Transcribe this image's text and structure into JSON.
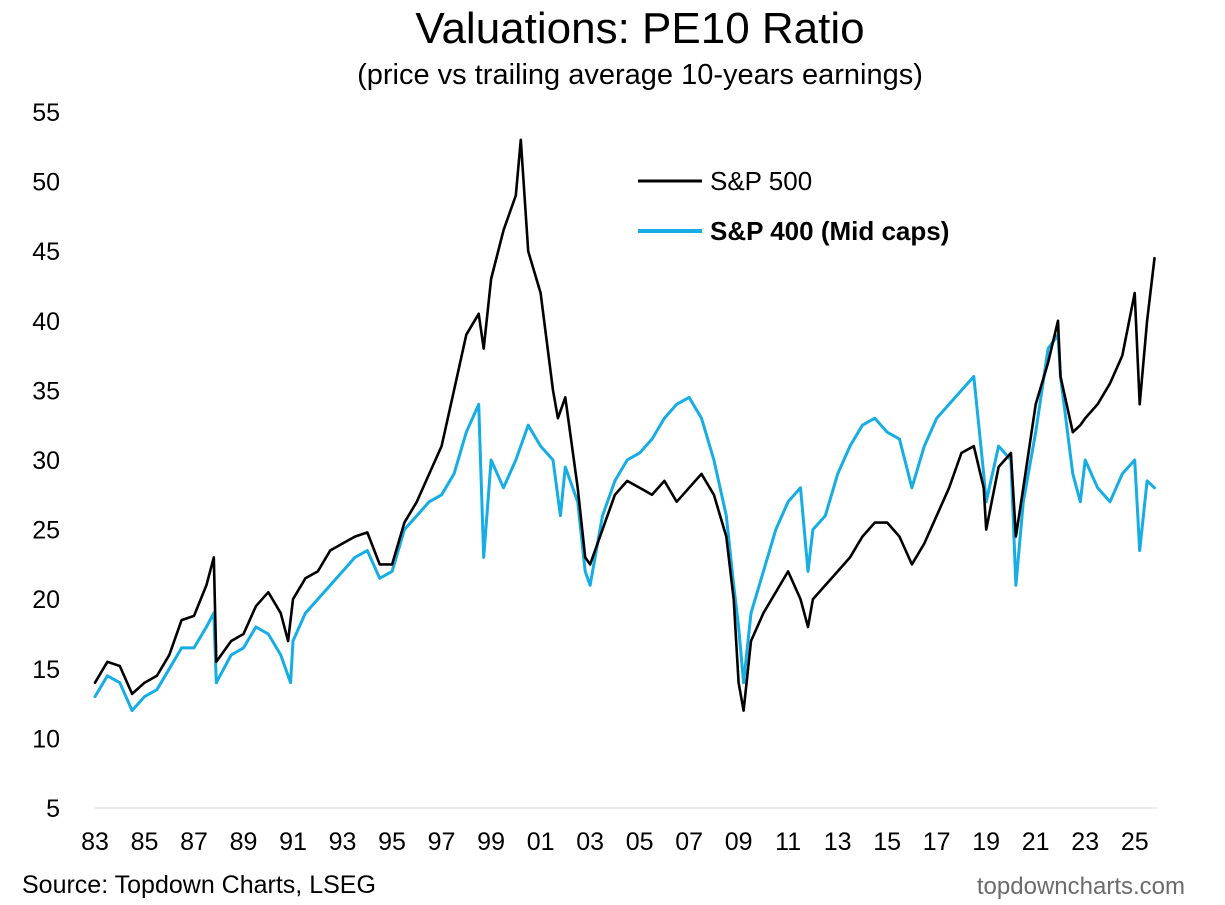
{
  "chart_data": {
    "type": "line",
    "title": "Valuations: PE10 Ratio",
    "subtitle": "(price vs trailing average 10-years earnings)",
    "xlabel": "",
    "ylabel": "",
    "ylim": [
      5,
      55
    ],
    "yticks": [
      5,
      10,
      15,
      20,
      25,
      30,
      35,
      40,
      45,
      50,
      55
    ],
    "xlim": [
      1983,
      2025.9
    ],
    "xticks": [
      {
        "value": 1983,
        "label": "83"
      },
      {
        "value": 1985,
        "label": "85"
      },
      {
        "value": 1987,
        "label": "87"
      },
      {
        "value": 1989,
        "label": "89"
      },
      {
        "value": 1991,
        "label": "91"
      },
      {
        "value": 1993,
        "label": "93"
      },
      {
        "value": 1995,
        "label": "95"
      },
      {
        "value": 1997,
        "label": "97"
      },
      {
        "value": 1999,
        "label": "99"
      },
      {
        "value": 2001,
        "label": "01"
      },
      {
        "value": 2003,
        "label": "03"
      },
      {
        "value": 2005,
        "label": "05"
      },
      {
        "value": 2007,
        "label": "07"
      },
      {
        "value": 2009,
        "label": "09"
      },
      {
        "value": 2011,
        "label": "11"
      },
      {
        "value": 2013,
        "label": "13"
      },
      {
        "value": 2015,
        "label": "15"
      },
      {
        "value": 2017,
        "label": "17"
      },
      {
        "value": 2019,
        "label": "19"
      },
      {
        "value": 2021,
        "label": "21"
      },
      {
        "value": 2023,
        "label": "23"
      },
      {
        "value": 2025,
        "label": "25"
      }
    ],
    "grid": false,
    "legend_position": "top-right",
    "series": [
      {
        "name": "S&P 500",
        "color": "#000000",
        "bold": false,
        "x": [
          1983.0,
          1983.5,
          1984.0,
          1984.5,
          1985.0,
          1985.5,
          1986.0,
          1986.5,
          1987.0,
          1987.5,
          1987.8,
          1987.9,
          1988.5,
          1989.0,
          1989.5,
          1990.0,
          1990.5,
          1990.8,
          1991.0,
          1991.5,
          1992.0,
          1992.5,
          1993.0,
          1993.5,
          1994.0,
          1994.5,
          1995.0,
          1995.5,
          1996.0,
          1996.5,
          1997.0,
          1997.5,
          1998.0,
          1998.5,
          1998.7,
          1999.0,
          1999.5,
          2000.0,
          2000.2,
          2000.5,
          2001.0,
          2001.5,
          2001.7,
          2002.0,
          2002.5,
          2002.8,
          2003.0,
          2003.5,
          2004.0,
          2004.5,
          2005.0,
          2005.5,
          2006.0,
          2006.5,
          2007.0,
          2007.5,
          2008.0,
          2008.5,
          2008.8,
          2009.0,
          2009.2,
          2009.5,
          2010.0,
          2010.5,
          2011.0,
          2011.5,
          2011.8,
          2012.0,
          2012.5,
          2013.0,
          2013.5,
          2014.0,
          2014.5,
          2015.0,
          2015.5,
          2016.0,
          2016.5,
          2017.0,
          2017.5,
          2018.0,
          2018.5,
          2018.9,
          2019.0,
          2019.5,
          2020.0,
          2020.2,
          2020.5,
          2021.0,
          2021.5,
          2021.9,
          2022.0,
          2022.5,
          2022.8,
          2023.0,
          2023.5,
          2024.0,
          2024.5,
          2025.0,
          2025.2,
          2025.5,
          2025.8
        ],
        "values": [
          14.0,
          15.5,
          15.2,
          13.2,
          14.0,
          14.5,
          16.0,
          18.5,
          18.8,
          21.0,
          23.0,
          15.5,
          17.0,
          17.5,
          19.5,
          20.5,
          19.0,
          17.0,
          20.0,
          21.5,
          22.0,
          23.5,
          24.0,
          24.5,
          24.8,
          22.5,
          22.5,
          25.5,
          27.0,
          29.0,
          31.0,
          35.0,
          39.0,
          40.5,
          38.0,
          43.0,
          46.5,
          49.0,
          53.0,
          45.0,
          42.0,
          35.0,
          33.0,
          34.5,
          28.0,
          23.0,
          22.5,
          25.0,
          27.5,
          28.5,
          28.0,
          27.5,
          28.5,
          27.0,
          28.0,
          29.0,
          27.5,
          24.5,
          20.0,
          14.0,
          12.0,
          17.0,
          19.0,
          20.5,
          22.0,
          20.0,
          18.0,
          20.0,
          21.0,
          22.0,
          23.0,
          24.5,
          25.5,
          25.5,
          24.5,
          22.5,
          24.0,
          26.0,
          28.0,
          30.5,
          31.0,
          28.0,
          25.0,
          29.5,
          30.5,
          24.5,
          28.0,
          34.0,
          37.0,
          40.0,
          36.0,
          32.0,
          32.5,
          33.0,
          34.0,
          35.5,
          37.5,
          42.0,
          34.0,
          40.0,
          44.5
        ]
      },
      {
        "name": "S&P 400 (Mid caps)",
        "color": "#16ade5",
        "bold": true,
        "x": [
          1983.0,
          1983.5,
          1984.0,
          1984.5,
          1985.0,
          1985.5,
          1986.0,
          1986.5,
          1987.0,
          1987.5,
          1987.8,
          1987.9,
          1988.5,
          1989.0,
          1989.5,
          1990.0,
          1990.5,
          1990.9,
          1991.0,
          1991.5,
          1992.0,
          1992.5,
          1993.0,
          1993.5,
          1994.0,
          1994.5,
          1995.0,
          1995.5,
          1996.0,
          1996.5,
          1997.0,
          1997.5,
          1998.0,
          1998.5,
          1998.7,
          1999.0,
          1999.5,
          2000.0,
          2000.5,
          2001.0,
          2001.5,
          2001.8,
          2002.0,
          2002.5,
          2002.8,
          2003.0,
          2003.5,
          2004.0,
          2004.5,
          2005.0,
          2005.5,
          2006.0,
          2006.5,
          2007.0,
          2007.5,
          2008.0,
          2008.5,
          2008.8,
          2009.0,
          2009.2,
          2009.5,
          2010.0,
          2010.5,
          2011.0,
          2011.5,
          2011.8,
          2012.0,
          2012.5,
          2013.0,
          2013.5,
          2014.0,
          2014.5,
          2015.0,
          2015.5,
          2016.0,
          2016.5,
          2017.0,
          2017.5,
          2018.0,
          2018.5,
          2018.9,
          2019.0,
          2019.5,
          2020.0,
          2020.2,
          2020.5,
          2021.0,
          2021.5,
          2021.9,
          2022.0,
          2022.5,
          2022.8,
          2023.0,
          2023.5,
          2024.0,
          2024.5,
          2025.0,
          2025.2,
          2025.5,
          2025.8
        ],
        "values": [
          13.0,
          14.5,
          14.0,
          12.0,
          13.0,
          13.5,
          15.0,
          16.5,
          16.5,
          18.0,
          19.0,
          14.0,
          16.0,
          16.5,
          18.0,
          17.5,
          16.0,
          14.0,
          17.0,
          19.0,
          20.0,
          21.0,
          22.0,
          23.0,
          23.5,
          21.5,
          22.0,
          25.0,
          26.0,
          27.0,
          27.5,
          29.0,
          32.0,
          34.0,
          23.0,
          30.0,
          28.0,
          30.0,
          32.5,
          31.0,
          30.0,
          26.0,
          29.5,
          27.0,
          22.0,
          21.0,
          26.0,
          28.5,
          30.0,
          30.5,
          31.5,
          33.0,
          34.0,
          34.5,
          33.0,
          30.0,
          26.0,
          21.0,
          18.0,
          14.0,
          19.0,
          22.0,
          25.0,
          27.0,
          28.0,
          22.0,
          25.0,
          26.0,
          29.0,
          31.0,
          32.5,
          33.0,
          32.0,
          31.5,
          28.0,
          31.0,
          33.0,
          34.0,
          35.0,
          36.0,
          29.0,
          27.0,
          31.0,
          30.0,
          21.0,
          27.0,
          32.0,
          38.0,
          39.0,
          36.0,
          29.0,
          27.0,
          30.0,
          28.0,
          27.0,
          29.0,
          30.0,
          23.5,
          28.5,
          28.0
        ]
      }
    ]
  },
  "footer": {
    "source": "Source: Topdown Charts, LSEG",
    "brand": "topdowncharts.com"
  }
}
